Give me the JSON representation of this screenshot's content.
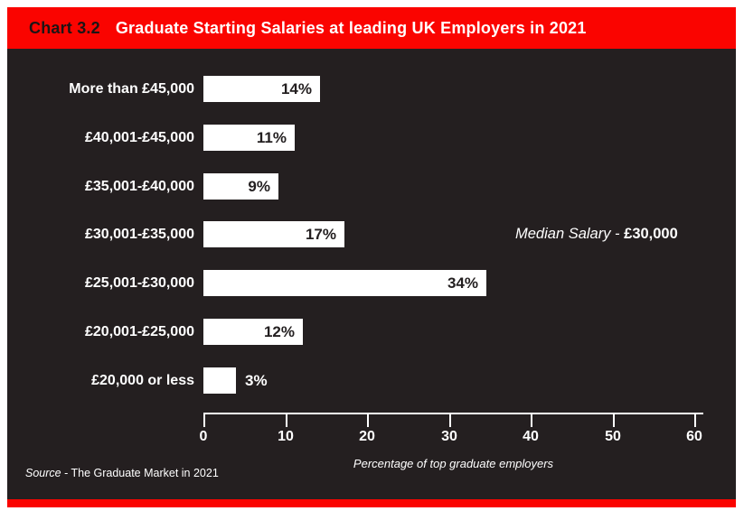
{
  "header": {
    "chart_number": "Chart 3.2",
    "title": "Graduate Starting Salaries at leading UK Employers in 2021"
  },
  "annotation": {
    "median_label": "Median Salary - ",
    "median_value": "£30,000"
  },
  "source": {
    "prefix": "Source",
    "text": " - The Graduate Market in 2021"
  },
  "colors": {
    "accent_red": "#fa0400",
    "panel_dark": "#241f20",
    "bar_white": "#ffffff",
    "bar_label_dark": "#231f20"
  },
  "chart_data": {
    "type": "bar",
    "orientation": "horizontal",
    "title": "Graduate Starting Salaries at leading UK Employers in 2021",
    "categories": [
      "More than £45,000",
      "£40,001-£45,000",
      "£35,001-£40,000",
      "£30,001-£35,000",
      "£25,001-£30,000",
      "£20,001-£25,000",
      "£20,000 or less"
    ],
    "values": [
      14,
      11,
      9,
      17,
      34,
      12,
      3
    ],
    "value_labels": [
      "14%",
      "11%",
      "9%",
      "17%",
      "34%",
      "12%",
      "3%"
    ],
    "xlabel": "Percentage of top graduate employers",
    "x_ticks": [
      0,
      10,
      20,
      30,
      40,
      50,
      60
    ],
    "xlim": [
      0,
      60
    ],
    "grid": false,
    "legend": false,
    "annotation": "Median Salary - £30,000"
  }
}
